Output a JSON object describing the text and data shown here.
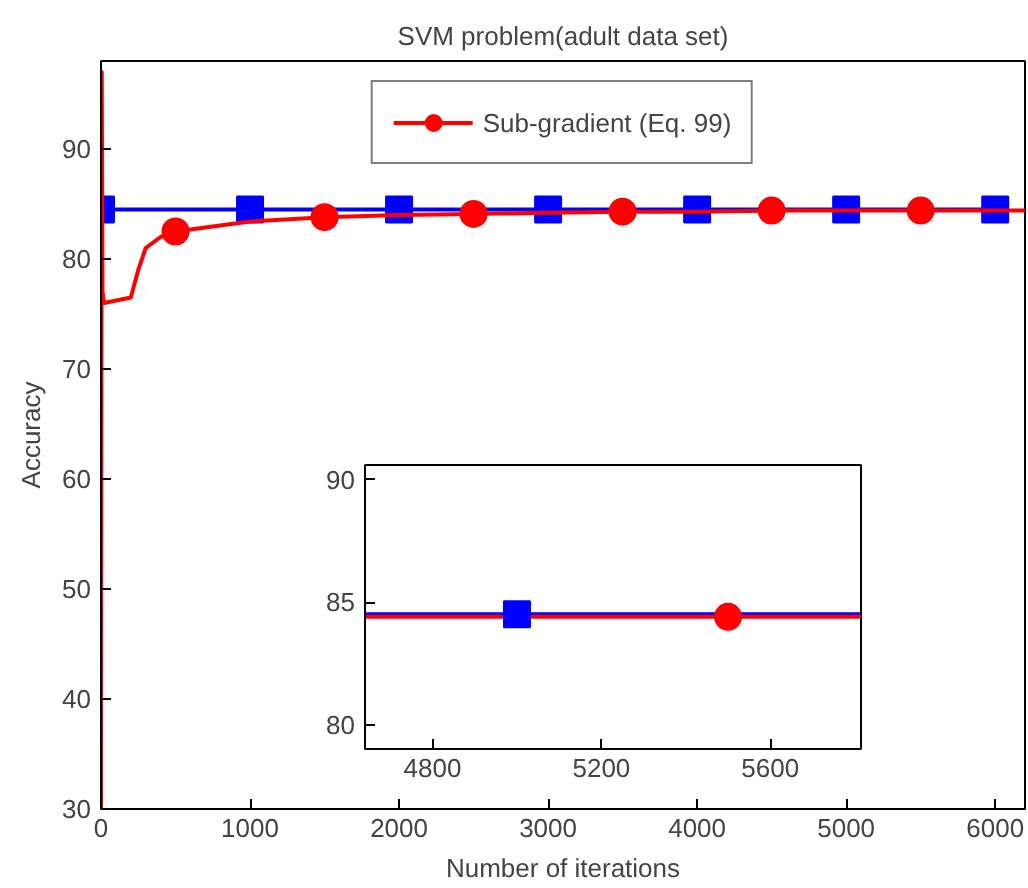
{
  "chart_data": [
    {
      "type": "line",
      "title": "SVM problem(adult data set)",
      "xlabel": "Number of iterations",
      "ylabel": "Accuracy",
      "xlim": [
        0,
        6200
      ],
      "ylim": [
        30,
        98
      ],
      "xticks": [
        0,
        1000,
        2000,
        3000,
        4000,
        5000,
        6000
      ],
      "yticks": [
        30,
        40,
        50,
        60,
        70,
        80,
        90
      ],
      "legend": "top",
      "grid": false,
      "series": [
        {
          "color": "#0000ff",
          "marker": "square",
          "x": [
            0,
            1000,
            2000,
            3000,
            4000,
            5000,
            6000
          ],
          "values": [
            84.5,
            84.5,
            84.5,
            84.5,
            84.5,
            84.5,
            84.5
          ]
        },
        {
          "name": "Sub-gradient (Eq. 99)",
          "color": "#ff0000",
          "marker": "none",
          "x": [
            0,
            5,
            10,
            20,
            200,
            250,
            300,
            400,
            500,
            1000,
            1500,
            2000,
            2500,
            3000,
            3500,
            4000,
            4500,
            5000,
            5500,
            6200
          ],
          "values": [
            30,
            97,
            77,
            76,
            76.5,
            79,
            81,
            82,
            82.5,
            83.4,
            83.8,
            84,
            84.1,
            84.2,
            84.3,
            84.3,
            84.4,
            84.4,
            84.4,
            84.4
          ]
        },
        {
          "type": "scatter",
          "color": "#ff0000",
          "marker": "circle",
          "x": [
            500,
            1500,
            2500,
            3500,
            4500,
            5500
          ],
          "values": [
            82.5,
            83.8,
            84.1,
            84.3,
            84.4,
            84.4
          ]
        }
      ]
    },
    {
      "type": "line",
      "xlim": [
        4640,
        5815
      ],
      "ylim": [
        79,
        90.6
      ],
      "xticks": [
        4800,
        5200,
        5600
      ],
      "yticks": [
        80,
        85,
        90
      ],
      "grid": false,
      "series": [
        {
          "color": "#0000ff",
          "marker": "none",
          "x": [
            4640,
            5815
          ],
          "values": [
            84.5,
            84.5
          ]
        },
        {
          "color": "#ff0000",
          "marker": "none",
          "x": [
            4640,
            5815
          ],
          "values": [
            84.4,
            84.4
          ]
        },
        {
          "type": "scatter",
          "color": "#0000ff",
          "marker": "square",
          "x": [
            5000
          ],
          "values": [
            84.5
          ]
        },
        {
          "type": "scatter",
          "color": "#ff0000",
          "marker": "circle",
          "x": [
            5500
          ],
          "values": [
            84.4
          ]
        }
      ]
    }
  ]
}
